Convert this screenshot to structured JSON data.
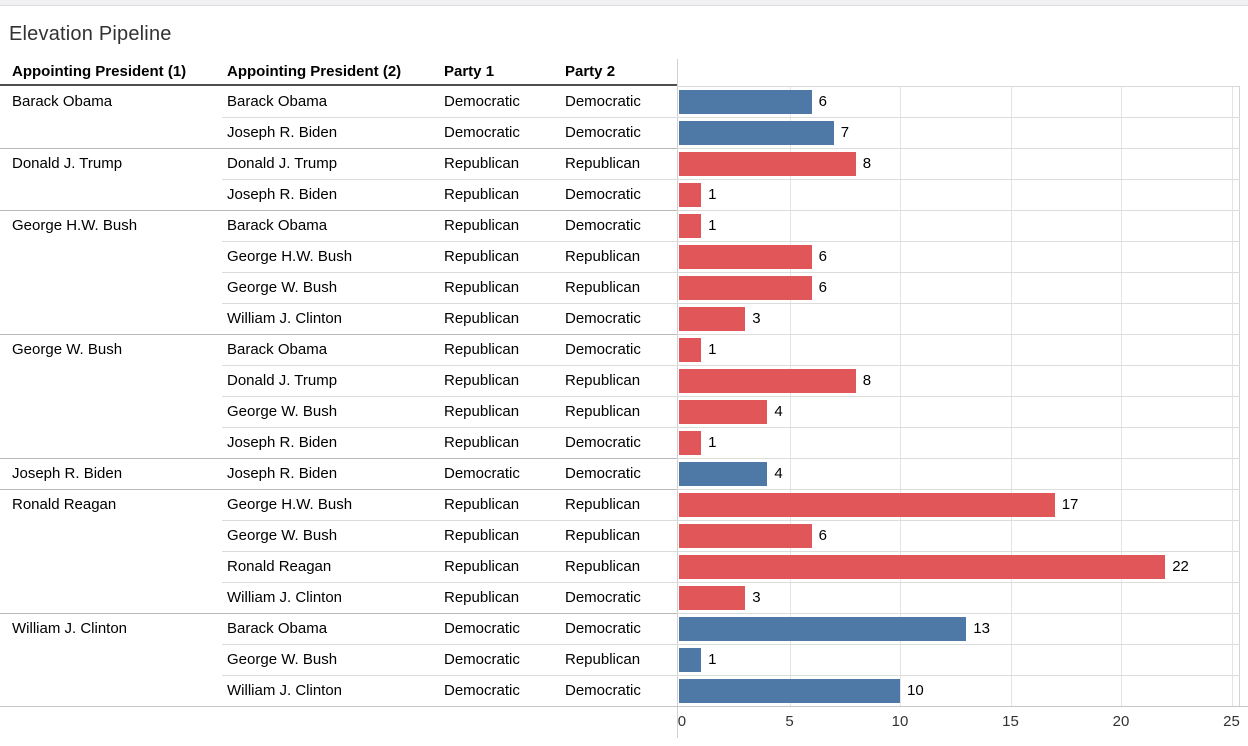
{
  "title": "Elevation Pipeline",
  "columns": [
    "Appointing President (1)",
    "Appointing President (2)",
    "Party 1",
    "Party 2"
  ],
  "colors": {
    "Democratic": "#4e79a7",
    "Republican": "#e15759",
    "header_underline": "#4e4e4e",
    "group_separator": "#b9b9b9",
    "row_separator": "#dcdcdc",
    "gridline": "#e4e4e4"
  },
  "chart_data": {
    "type": "bar",
    "orientation": "horizontal",
    "title": "Elevation Pipeline",
    "xlabel": "",
    "ylabel": "",
    "xlim": [
      0,
      25
    ],
    "x_ticks": [
      0,
      5,
      10,
      15,
      20,
      25
    ],
    "grid": true,
    "color_by": "party1",
    "rows": [
      {
        "president1": "Barack Obama",
        "president2": "Barack Obama",
        "party1": "Democratic",
        "party2": "Democratic",
        "value": 6,
        "group_start": true
      },
      {
        "president1": "",
        "president2": "Joseph R. Biden",
        "party1": "Democratic",
        "party2": "Democratic",
        "value": 7,
        "group_start": false
      },
      {
        "president1": "Donald J. Trump",
        "president2": "Donald J. Trump",
        "party1": "Republican",
        "party2": "Republican",
        "value": 8,
        "group_start": true
      },
      {
        "president1": "",
        "president2": "Joseph R. Biden",
        "party1": "Republican",
        "party2": "Democratic",
        "value": 1,
        "group_start": false
      },
      {
        "president1": "George H.W. Bush",
        "president2": "Barack Obama",
        "party1": "Republican",
        "party2": "Democratic",
        "value": 1,
        "group_start": true
      },
      {
        "president1": "",
        "president2": "George H.W. Bush",
        "party1": "Republican",
        "party2": "Republican",
        "value": 6,
        "group_start": false
      },
      {
        "president1": "",
        "president2": "George W. Bush",
        "party1": "Republican",
        "party2": "Republican",
        "value": 6,
        "group_start": false
      },
      {
        "president1": "",
        "president2": "William J. Clinton",
        "party1": "Republican",
        "party2": "Democratic",
        "value": 3,
        "group_start": false
      },
      {
        "president1": "George W. Bush",
        "president2": "Barack Obama",
        "party1": "Republican",
        "party2": "Democratic",
        "value": 1,
        "group_start": true
      },
      {
        "president1": "",
        "president2": "Donald J. Trump",
        "party1": "Republican",
        "party2": "Republican",
        "value": 8,
        "group_start": false
      },
      {
        "president1": "",
        "president2": "George W. Bush",
        "party1": "Republican",
        "party2": "Republican",
        "value": 4,
        "group_start": false
      },
      {
        "president1": "",
        "president2": "Joseph R. Biden",
        "party1": "Republican",
        "party2": "Democratic",
        "value": 1,
        "group_start": false
      },
      {
        "president1": "Joseph R. Biden",
        "president2": "Joseph R. Biden",
        "party1": "Democratic",
        "party2": "Democratic",
        "value": 4,
        "group_start": true
      },
      {
        "president1": "Ronald Reagan",
        "president2": "George H.W. Bush",
        "party1": "Republican",
        "party2": "Republican",
        "value": 17,
        "group_start": true
      },
      {
        "president1": "",
        "president2": "George W. Bush",
        "party1": "Republican",
        "party2": "Republican",
        "value": 6,
        "group_start": false
      },
      {
        "president1": "",
        "president2": "Ronald Reagan",
        "party1": "Republican",
        "party2": "Republican",
        "value": 22,
        "group_start": false
      },
      {
        "president1": "",
        "president2": "William J. Clinton",
        "party1": "Republican",
        "party2": "Democratic",
        "value": 3,
        "group_start": false
      },
      {
        "president1": "William J. Clinton",
        "president2": "Barack Obama",
        "party1": "Democratic",
        "party2": "Democratic",
        "value": 13,
        "group_start": true
      },
      {
        "president1": "",
        "president2": "George W. Bush",
        "party1": "Democratic",
        "party2": "Republican",
        "value": 1,
        "group_start": false
      },
      {
        "president1": "",
        "president2": "William J. Clinton",
        "party1": "Democratic",
        "party2": "Democratic",
        "value": 10,
        "group_start": false
      }
    ]
  }
}
